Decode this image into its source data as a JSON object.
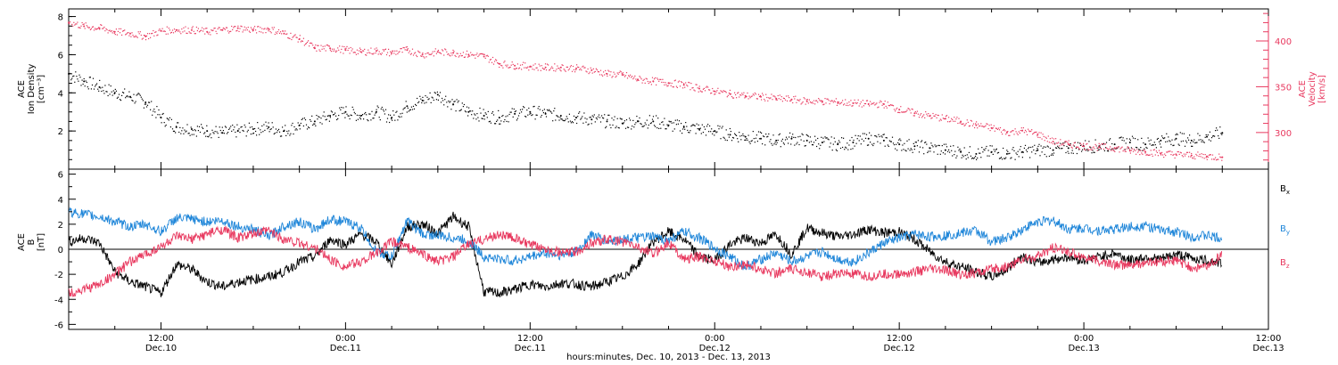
{
  "figure": {
    "xlabel": "hours:minutes, Dec. 10, 2013 - Dec. 13, 2013",
    "x_range_hours": [
      6,
      84
    ],
    "x_ticks": [
      {
        "hour": 12,
        "time": "12:00",
        "date": "Dec.10"
      },
      {
        "hour": 24,
        "time": "0:00",
        "date": "Dec.11"
      },
      {
        "hour": 36,
        "time": "12:00",
        "date": "Dec.11"
      },
      {
        "hour": 48,
        "time": "0:00",
        "date": "Dec.12"
      },
      {
        "hour": 60,
        "time": "12:00",
        "date": "Dec.12"
      },
      {
        "hour": 72,
        "time": "0:00",
        "date": "Dec.13"
      },
      {
        "hour": 84,
        "time": "12:00",
        "date": "Dec.13"
      }
    ],
    "colors": {
      "axis": "#000000",
      "pink": "#e8395f",
      "blue": "#1f86d9"
    }
  },
  "chart_data": [
    {
      "type": "scatter",
      "panel": "top",
      "left_axis": {
        "label_lines": [
          "ACE",
          "Ion Density",
          "[cm⁻³]"
        ],
        "ylim": [
          0,
          8.4
        ],
        "ticks": [
          2,
          4,
          6,
          8
        ]
      },
      "right_axis": {
        "label_lines": [
          "ACE",
          "Velocity",
          "[km/s]"
        ],
        "ylim": [
          260,
          435
        ],
        "ticks": [
          300,
          350,
          400
        ]
      },
      "series": [
        {
          "name": "Ion Density",
          "axis": "left",
          "color": "#000000",
          "x": [
            6,
            7,
            8,
            9,
            10,
            11,
            12,
            13,
            14,
            15,
            16,
            17,
            18,
            19,
            20,
            21,
            22,
            23,
            24,
            25,
            26,
            27,
            28,
            29,
            30,
            31,
            32,
            33,
            34,
            35,
            36,
            37,
            38,
            39,
            40,
            41,
            42,
            43,
            44,
            45,
            46,
            47,
            48,
            49,
            50,
            51,
            52,
            53,
            54,
            55,
            56,
            57,
            58,
            59,
            60,
            61,
            62,
            63,
            64,
            65,
            66,
            67,
            68,
            69,
            70,
            71,
            72,
            73,
            74,
            75,
            76,
            77,
            78,
            79,
            80,
            81
          ],
          "y": [
            5.0,
            4.6,
            4.3,
            4.0,
            3.8,
            3.5,
            2.7,
            2.2,
            2.1,
            2.0,
            1.9,
            2.0,
            2.1,
            2.2,
            2.0,
            2.3,
            2.5,
            2.8,
            3.0,
            2.8,
            3.0,
            2.7,
            3.3,
            3.6,
            3.9,
            3.4,
            3.0,
            2.8,
            2.7,
            2.9,
            3.0,
            2.9,
            2.8,
            2.7,
            2.6,
            2.5,
            2.4,
            2.5,
            2.5,
            2.3,
            2.2,
            2.1,
            2.0,
            1.8,
            1.7,
            1.6,
            1.5,
            1.6,
            1.5,
            1.4,
            1.3,
            1.4,
            1.6,
            1.5,
            1.3,
            1.2,
            1.1,
            1.0,
            0.9,
            0.8,
            0.9,
            0.8,
            0.9,
            1.0,
            1.0,
            1.1,
            1.2,
            1.2,
            1.3,
            1.4,
            1.3,
            1.5,
            1.6,
            1.5,
            1.7,
            1.9
          ]
        },
        {
          "name": "Velocity",
          "axis": "right",
          "color": "#e8395f",
          "x": [
            6,
            7,
            8,
            9,
            10,
            11,
            12,
            13,
            14,
            15,
            16,
            17,
            18,
            19,
            20,
            21,
            22,
            23,
            24,
            25,
            26,
            27,
            28,
            29,
            30,
            31,
            32,
            33,
            34,
            35,
            36,
            37,
            38,
            39,
            40,
            41,
            42,
            43,
            44,
            45,
            46,
            47,
            48,
            49,
            50,
            51,
            52,
            53,
            54,
            55,
            56,
            57,
            58,
            59,
            60,
            61,
            62,
            63,
            64,
            65,
            66,
            67,
            68,
            69,
            70,
            71,
            72,
            73,
            74,
            75,
            76,
            77,
            78,
            79,
            80,
            81
          ],
          "y": [
            420,
            416,
            414,
            410,
            408,
            405,
            411,
            412,
            412,
            410,
            412,
            414,
            412,
            413,
            408,
            402,
            392,
            392,
            390,
            388,
            389,
            387,
            390,
            385,
            388,
            387,
            385,
            383,
            375,
            373,
            372,
            371,
            371,
            370,
            368,
            364,
            363,
            358,
            356,
            354,
            352,
            348,
            345,
            342,
            340,
            339,
            337,
            336,
            334,
            334,
            333,
            332,
            331,
            331,
            325,
            321,
            318,
            315,
            312,
            308,
            305,
            300,
            302,
            298,
            290,
            287,
            285,
            284,
            283,
            280,
            279,
            277,
            276,
            275,
            274,
            273
          ]
        }
      ]
    },
    {
      "type": "line",
      "panel": "bottom",
      "left_axis": {
        "label_lines": [
          "ACE",
          "B",
          "[nT]"
        ],
        "ylim": [
          -6.4,
          6.4
        ],
        "ticks": [
          -6,
          -4,
          -2,
          0,
          2,
          4,
          6
        ]
      },
      "zero_line": true,
      "series": [
        {
          "name": "Bx",
          "color": "#000000",
          "x": [
            6,
            7,
            8,
            9,
            10,
            11,
            12,
            13,
            14,
            15,
            16,
            17,
            18,
            19,
            20,
            21,
            22,
            23,
            24,
            25,
            26,
            27,
            28,
            29,
            30,
            31,
            32,
            33,
            34,
            35,
            36,
            37,
            38,
            39,
            40,
            41,
            42,
            43,
            44,
            45,
            46,
            47,
            48,
            49,
            50,
            51,
            52,
            53,
            54,
            55,
            56,
            57,
            58,
            59,
            60,
            61,
            62,
            63,
            64,
            65,
            66,
            67,
            68,
            69,
            70,
            71,
            72,
            73,
            74,
            75,
            76,
            77,
            78,
            79,
            80,
            81
          ],
          "y": [
            0.6,
            0.9,
            0.5,
            -1.8,
            -2.6,
            -3.0,
            -3.5,
            -1.2,
            -1.6,
            -2.6,
            -3.0,
            -2.6,
            -2.4,
            -2.2,
            -1.8,
            -1.0,
            -0.6,
            0.8,
            0.4,
            1.2,
            0.6,
            -1.2,
            1.8,
            2.0,
            1.3,
            2.6,
            1.8,
            -3.4,
            -3.5,
            -3.2,
            -2.8,
            -3.0,
            -2.7,
            -2.8,
            -3.0,
            -2.6,
            -2.2,
            -1.2,
            0.6,
            1.4,
            0.8,
            -0.6,
            -0.9,
            0.4,
            0.9,
            0.5,
            1.2,
            -0.4,
            1.7,
            1.3,
            1.0,
            1.2,
            1.6,
            1.3,
            1.4,
            0.8,
            -0.2,
            -1.0,
            -1.4,
            -1.8,
            -2.2,
            -1.6,
            -0.5,
            -1.1,
            -0.8,
            -0.6,
            -0.9,
            -0.6,
            -0.3,
            -0.9,
            -0.6,
            -0.8,
            -0.4,
            -0.7,
            -0.9,
            -1.1
          ]
        },
        {
          "name": "By",
          "color": "#1f86d9",
          "x": [
            6,
            7,
            8,
            9,
            10,
            11,
            12,
            13,
            14,
            15,
            16,
            17,
            18,
            19,
            20,
            21,
            22,
            23,
            24,
            25,
            26,
            27,
            28,
            29,
            30,
            31,
            32,
            33,
            34,
            35,
            36,
            37,
            38,
            39,
            40,
            41,
            42,
            43,
            44,
            45,
            46,
            47,
            48,
            49,
            50,
            51,
            52,
            53,
            54,
            55,
            56,
            57,
            58,
            59,
            60,
            61,
            62,
            63,
            64,
            65,
            66,
            67,
            68,
            69,
            70,
            71,
            72,
            73,
            74,
            75,
            76,
            77,
            78,
            79,
            80,
            81
          ],
          "y": [
            3.0,
            2.8,
            2.6,
            2.2,
            1.8,
            2.0,
            1.4,
            2.5,
            2.4,
            2.2,
            2.3,
            1.8,
            1.6,
            1.0,
            1.9,
            2.2,
            1.6,
            2.4,
            2.2,
            1.7,
            -0.2,
            -0.6,
            2.3,
            1.2,
            1.1,
            0.9,
            0.7,
            -0.6,
            -0.8,
            -0.9,
            -0.6,
            -0.3,
            -0.5,
            -0.2,
            1.2,
            0.6,
            0.8,
            0.9,
            1.0,
            0.7,
            1.4,
            0.9,
            0.1,
            -0.6,
            -1.4,
            -0.8,
            -0.3,
            -1.0,
            -0.6,
            -0.2,
            -0.8,
            -1.0,
            -0.3,
            0.5,
            0.9,
            1.2,
            1.0,
            1.1,
            1.3,
            1.5,
            0.6,
            0.9,
            1.6,
            2.2,
            2.3,
            1.6,
            1.7,
            1.5,
            1.6,
            1.8,
            1.9,
            1.5,
            1.4,
            1.0,
            1.1,
            0.8
          ]
        },
        {
          "name": "Bz",
          "color": "#e8395f",
          "x": [
            6,
            7,
            8,
            9,
            10,
            11,
            12,
            13,
            14,
            15,
            16,
            17,
            18,
            19,
            20,
            21,
            22,
            23,
            24,
            25,
            26,
            27,
            28,
            29,
            30,
            31,
            32,
            33,
            34,
            35,
            36,
            37,
            38,
            39,
            40,
            41,
            42,
            43,
            44,
            45,
            46,
            47,
            48,
            49,
            50,
            51,
            52,
            53,
            54,
            55,
            56,
            57,
            58,
            59,
            60,
            61,
            62,
            63,
            64,
            65,
            66,
            67,
            68,
            69,
            70,
            71,
            72,
            73,
            74,
            75,
            76,
            77,
            78,
            79,
            80,
            81
          ],
          "y": [
            -3.5,
            -3.2,
            -2.8,
            -2.0,
            -1.0,
            -0.4,
            0.2,
            1.0,
            0.8,
            1.2,
            1.6,
            0.9,
            1.2,
            1.5,
            0.8,
            0.5,
            0.1,
            -0.8,
            -1.4,
            -1.0,
            -0.3,
            0.6,
            0.2,
            -0.4,
            -1.0,
            -0.6,
            0.4,
            0.8,
            1.2,
            0.9,
            0.3,
            0.1,
            -0.3,
            -0.2,
            0.5,
            0.8,
            0.6,
            0.2,
            -0.4,
            0.6,
            -0.8,
            -0.6,
            -0.9,
            -1.4,
            -1.2,
            -1.6,
            -1.9,
            -1.6,
            -1.8,
            -2.2,
            -1.9,
            -2.0,
            -2.2,
            -2.0,
            -2.0,
            -1.8,
            -1.6,
            -1.7,
            -2.0,
            -1.9,
            -1.6,
            -1.4,
            -0.8,
            -0.6,
            0.1,
            -0.2,
            -0.6,
            -1.0,
            -1.2,
            -1.3,
            -1.1,
            -1.0,
            -0.9,
            -1.5,
            -1.4,
            -0.4
          ]
        }
      ],
      "legend": [
        {
          "base": "B",
          "sub": "x",
          "color": "#000000"
        },
        {
          "base": "B",
          "sub": "y",
          "color": "#1f86d9"
        },
        {
          "base": "B",
          "sub": "z",
          "color": "#e8395f"
        }
      ]
    }
  ]
}
